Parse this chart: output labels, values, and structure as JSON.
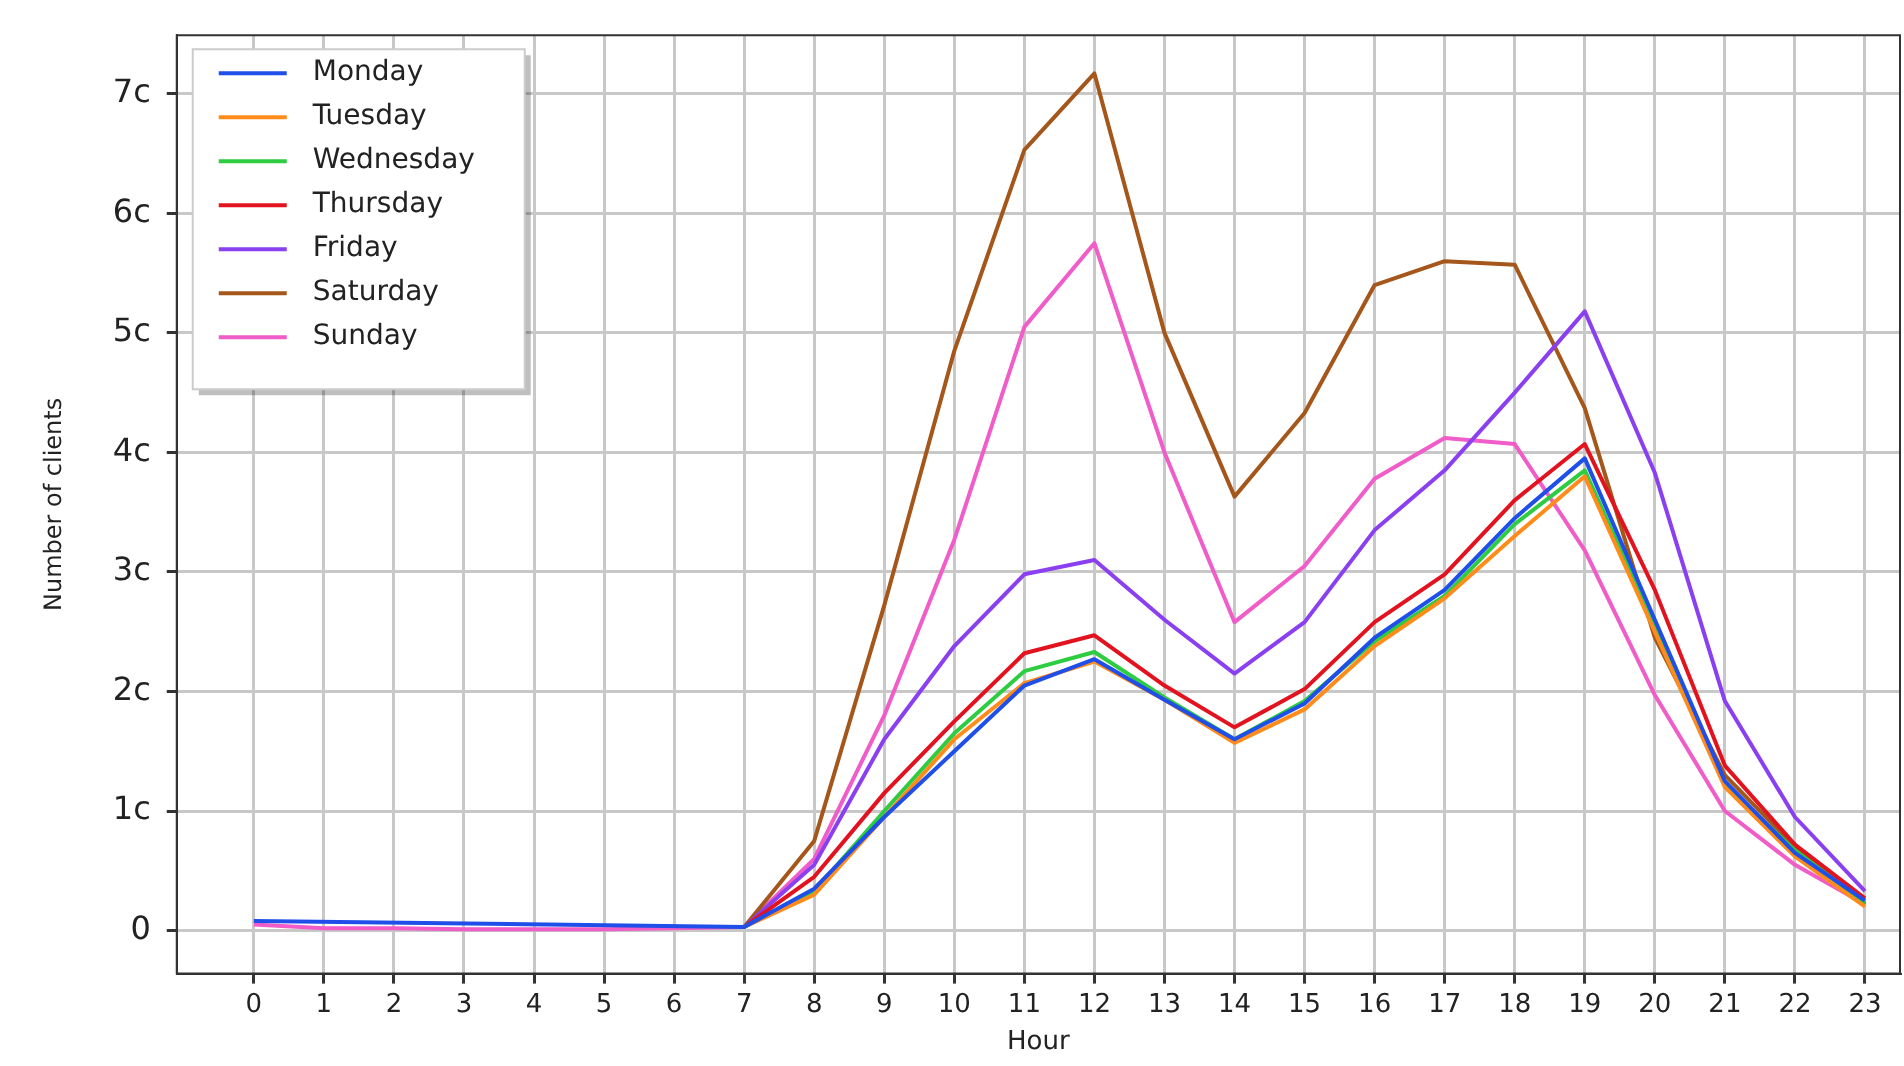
{
  "chart_data": {
    "type": "line",
    "xlabel": "Hour",
    "ylabel": "Number of clients",
    "x": [
      0,
      1,
      2,
      3,
      4,
      5,
      6,
      7,
      8,
      9,
      10,
      11,
      12,
      13,
      14,
      15,
      16,
      17,
      18,
      19,
      20,
      21,
      22,
      23
    ],
    "xlim": [
      -1.1,
      23.5
    ],
    "xticks": [
      0,
      1,
      2,
      3,
      4,
      5,
      6,
      7,
      8,
      9,
      10,
      11,
      12,
      13,
      14,
      15,
      16,
      17,
      18,
      19,
      20,
      21,
      22,
      23
    ],
    "ylim": [
      -0.36,
      7.49
    ],
    "yticks": [
      0,
      {
        "value": 1,
        "label": "1c"
      },
      {
        "value": 2,
        "label": "2c"
      },
      {
        "value": 3,
        "label": "3c"
      },
      {
        "value": 4,
        "label": "4c"
      },
      {
        "value": 5,
        "label": "5c"
      },
      {
        "value": 6,
        "label": "6c"
      },
      {
        "value": 7,
        "label": "7c"
      }
    ],
    "grid": true,
    "legend": "top left",
    "marker": "none",
    "line_style": "solid",
    "series": [
      {
        "name": "Monday",
        "color": "#1f4fe8",
        "values": [
          0.08,
          null,
          null,
          null,
          null,
          null,
          null,
          0.03,
          0.35,
          0.95,
          1.5,
          2.05,
          2.27,
          1.93,
          1.6,
          1.9,
          2.45,
          2.85,
          3.45,
          3.95,
          2.6,
          1.25,
          0.65,
          0.25
        ]
      },
      {
        "name": "Tuesday",
        "color": "#ff8c1a",
        "values": [
          null,
          null,
          null,
          null,
          null,
          null,
          null,
          0.03,
          0.3,
          0.95,
          1.6,
          2.07,
          2.25,
          1.93,
          1.57,
          1.85,
          2.38,
          2.78,
          3.3,
          3.8,
          2.5,
          1.2,
          0.62,
          0.2
        ]
      },
      {
        "name": "Wednesday",
        "color": "#2ecc40",
        "values": [
          null,
          null,
          null,
          null,
          null,
          null,
          null,
          0.03,
          0.33,
          1.0,
          1.65,
          2.17,
          2.33,
          1.95,
          1.6,
          1.92,
          2.42,
          2.8,
          3.4,
          3.85,
          2.55,
          1.22,
          0.67,
          0.23
        ]
      },
      {
        "name": "Thursday",
        "color": "#e3121f",
        "values": [
          null,
          null,
          null,
          null,
          null,
          null,
          null,
          0.03,
          0.45,
          1.15,
          1.75,
          2.32,
          2.47,
          2.05,
          1.7,
          2.02,
          2.58,
          2.98,
          3.6,
          4.07,
          2.85,
          1.38,
          0.72,
          0.27
        ]
      },
      {
        "name": "Friday",
        "color": "#8a3ff0",
        "values": [
          null,
          null,
          null,
          null,
          null,
          null,
          null,
          0.03,
          0.55,
          1.6,
          2.38,
          2.98,
          3.1,
          2.6,
          2.15,
          2.58,
          3.35,
          3.85,
          4.5,
          5.18,
          3.83,
          1.92,
          0.95,
          0.33
        ]
      },
      {
        "name": "Saturday",
        "color": "#a5561b",
        "values": [
          null,
          null,
          null,
          null,
          null,
          null,
          null,
          0.03,
          0.75,
          2.72,
          4.85,
          6.53,
          7.17,
          5.0,
          3.63,
          4.33,
          5.4,
          5.6,
          5.57,
          4.37,
          2.45,
          1.3,
          0.7,
          0.22
        ]
      },
      {
        "name": "Sunday",
        "color": "#f05cc8",
        "values": [
          0.05,
          0.02,
          0.02,
          0.01,
          0.01,
          0.01,
          0.02,
          0.03,
          0.6,
          1.8,
          3.27,
          5.05,
          5.75,
          4.0,
          2.58,
          3.05,
          3.78,
          4.12,
          4.07,
          3.18,
          1.97,
          1.0,
          0.55,
          0.22
        ]
      }
    ]
  }
}
